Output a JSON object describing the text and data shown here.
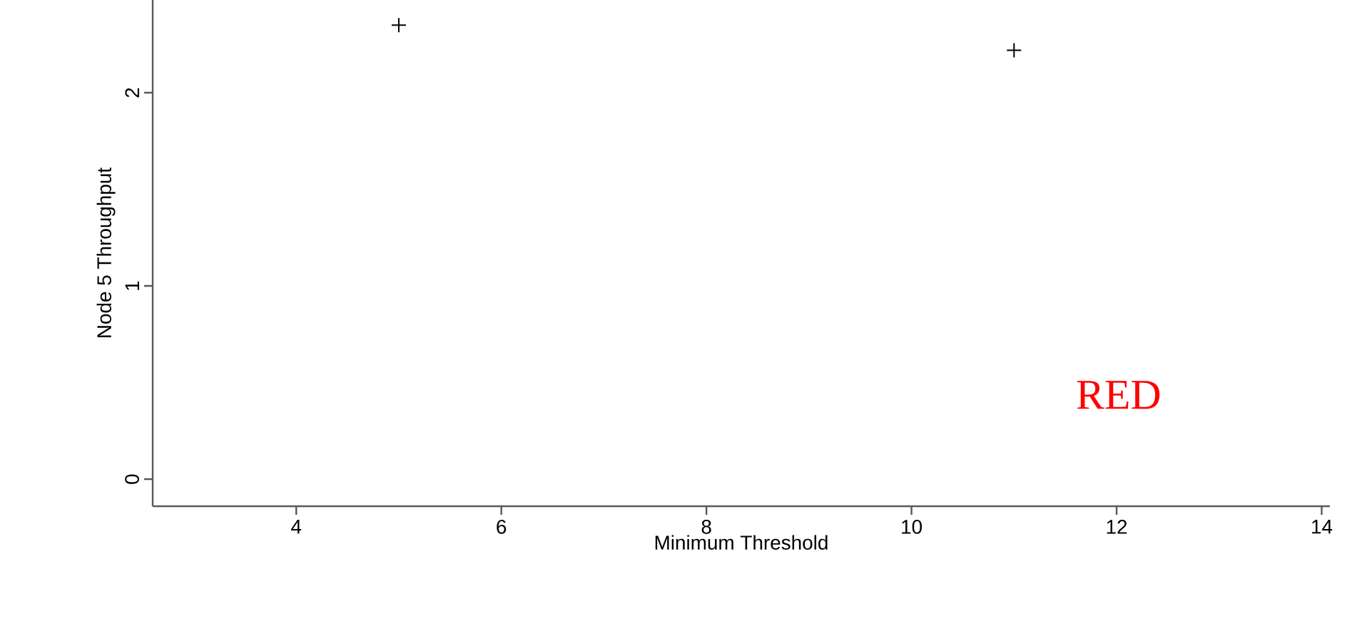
{
  "chart_data": {
    "type": "scatter",
    "xlabel": "Minimum Threshold",
    "ylabel": "Node 5 Throughput",
    "x": [
      5,
      11
    ],
    "values": [
      2.35,
      2.22
    ],
    "color": "#000000",
    "marker": "cross",
    "xlim": [
      2.6,
      14.08
    ],
    "ylim": [
      -0.14,
      2.48
    ],
    "xticks": [
      4,
      6,
      8,
      10,
      12,
      14
    ],
    "yticks": [
      0,
      1,
      2
    ],
    "annotations": [
      "RED"
    ]
  }
}
